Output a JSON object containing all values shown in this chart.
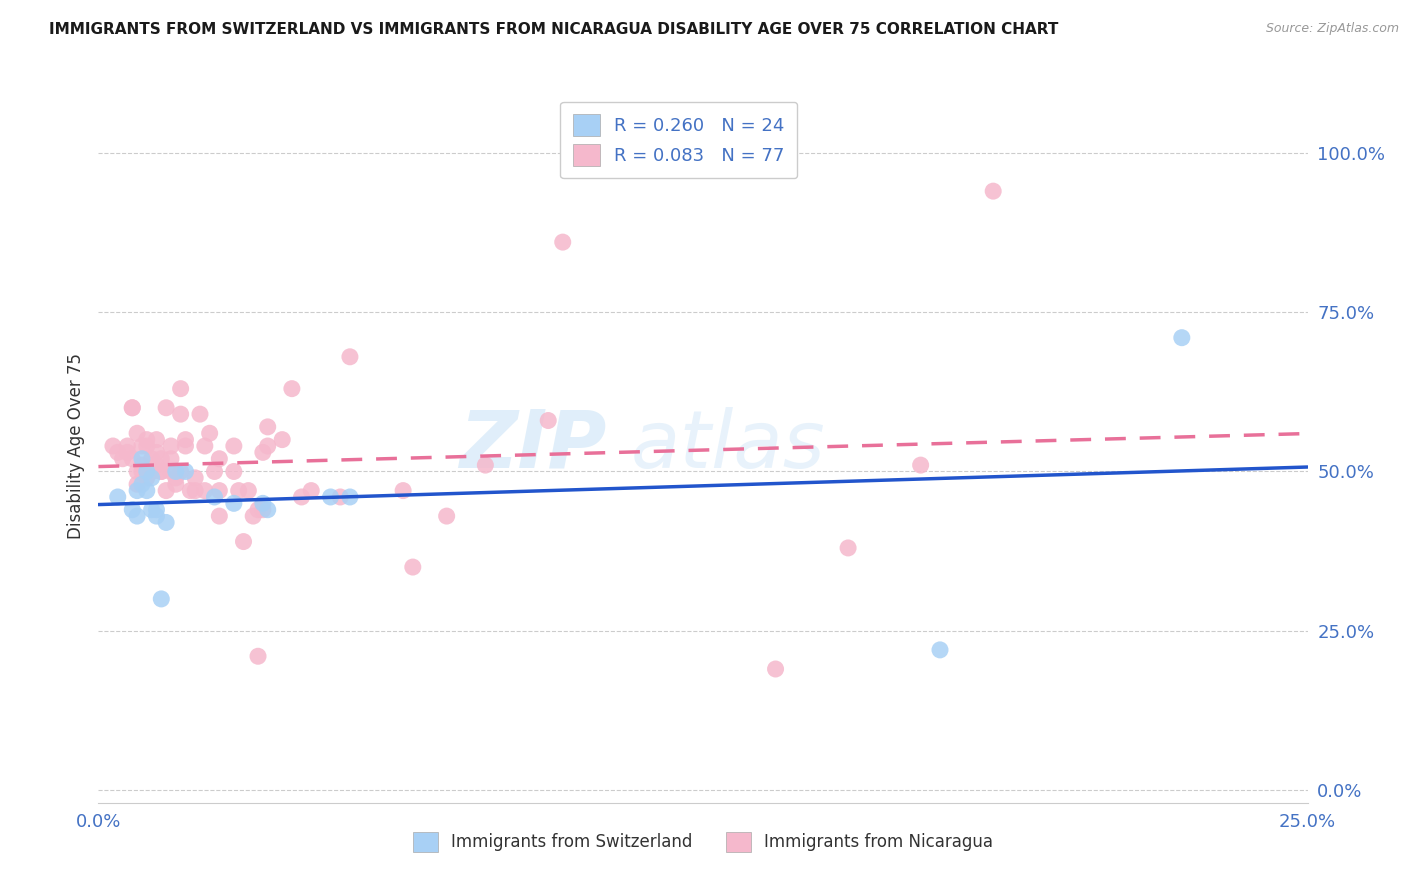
{
  "title": "IMMIGRANTS FROM SWITZERLAND VS IMMIGRANTS FROM NICARAGUA DISABILITY AGE OVER 75 CORRELATION CHART",
  "source": "Source: ZipAtlas.com",
  "ylabel": "Disability Age Over 75",
  "xlim": [
    0.0,
    0.25
  ],
  "ylim": [
    -0.02,
    1.1
  ],
  "xticks": [
    0.0,
    0.05,
    0.1,
    0.15,
    0.2,
    0.25
  ],
  "xtick_labels": [
    "0.0%",
    "",
    "",
    "",
    "",
    "25.0%"
  ],
  "ytick_labels_right": [
    "0.0%",
    "25.0%",
    "50.0%",
    "75.0%",
    "100.0%"
  ],
  "yticks_right": [
    0.0,
    0.25,
    0.5,
    0.75,
    1.0
  ],
  "legend_label1": "R = 0.260   N = 24",
  "legend_label2": "R = 0.083   N = 77",
  "legend_bottom1": "Immigrants from Switzerland",
  "legend_bottom2": "Immigrants from Nicaragua",
  "color_swiss": "#a8d0f5",
  "color_nica": "#f5b8cc",
  "color_swiss_line": "#2255cc",
  "color_nica_line": "#e87099",
  "watermark_text": "ZIP",
  "watermark_text2": "atlas",
  "swiss_x": [
    0.004,
    0.007,
    0.008,
    0.008,
    0.009,
    0.009,
    0.01,
    0.01,
    0.011,
    0.011,
    0.012,
    0.012,
    0.013,
    0.014,
    0.016,
    0.018,
    0.024,
    0.028,
    0.034,
    0.035,
    0.048,
    0.052,
    0.174,
    0.224
  ],
  "swiss_y": [
    0.46,
    0.44,
    0.47,
    0.43,
    0.48,
    0.52,
    0.47,
    0.5,
    0.44,
    0.49,
    0.44,
    0.43,
    0.3,
    0.42,
    0.5,
    0.5,
    0.46,
    0.45,
    0.45,
    0.44,
    0.46,
    0.46,
    0.22,
    0.71
  ],
  "nica_x": [
    0.003,
    0.004,
    0.005,
    0.006,
    0.006,
    0.007,
    0.007,
    0.007,
    0.008,
    0.008,
    0.008,
    0.009,
    0.009,
    0.009,
    0.01,
    0.01,
    0.01,
    0.011,
    0.011,
    0.011,
    0.012,
    0.012,
    0.012,
    0.013,
    0.013,
    0.013,
    0.014,
    0.014,
    0.015,
    0.015,
    0.015,
    0.016,
    0.016,
    0.017,
    0.017,
    0.017,
    0.018,
    0.018,
    0.019,
    0.02,
    0.02,
    0.021,
    0.022,
    0.022,
    0.023,
    0.024,
    0.025,
    0.025,
    0.025,
    0.028,
    0.028,
    0.029,
    0.03,
    0.031,
    0.032,
    0.033,
    0.033,
    0.034,
    0.034,
    0.035,
    0.035,
    0.038,
    0.04,
    0.042,
    0.044,
    0.05,
    0.052,
    0.063,
    0.065,
    0.072,
    0.08,
    0.093,
    0.096,
    0.14,
    0.155,
    0.17,
    0.185
  ],
  "nica_y": [
    0.54,
    0.53,
    0.52,
    0.54,
    0.53,
    0.52,
    0.6,
    0.6,
    0.48,
    0.5,
    0.56,
    0.5,
    0.51,
    0.54,
    0.54,
    0.55,
    0.49,
    0.5,
    0.52,
    0.5,
    0.53,
    0.51,
    0.55,
    0.52,
    0.5,
    0.5,
    0.47,
    0.6,
    0.52,
    0.5,
    0.54,
    0.48,
    0.49,
    0.63,
    0.59,
    0.5,
    0.54,
    0.55,
    0.47,
    0.49,
    0.47,
    0.59,
    0.54,
    0.47,
    0.56,
    0.5,
    0.52,
    0.43,
    0.47,
    0.5,
    0.54,
    0.47,
    0.39,
    0.47,
    0.43,
    0.21,
    0.44,
    0.44,
    0.53,
    0.57,
    0.54,
    0.55,
    0.63,
    0.46,
    0.47,
    0.46,
    0.68,
    0.47,
    0.35,
    0.43,
    0.51,
    0.58,
    0.86,
    0.19,
    0.38,
    0.51,
    0.94
  ]
}
